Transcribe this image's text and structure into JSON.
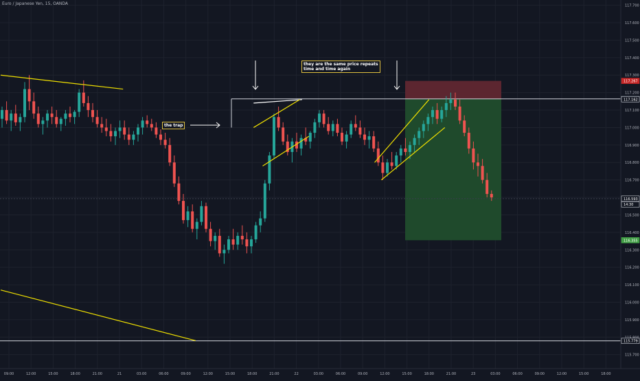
{
  "header": {
    "symbol": "Euro / Japanese Yen, 15, OANDA"
  },
  "colors": {
    "background": "#131722",
    "grid": "#1e222d",
    "up": "#26a69a",
    "down": "#ef5350",
    "trendline": "#f0e000",
    "level": "#d1d4dc",
    "stop_zone": "#5c2630",
    "target_zone": "#1f4a2c",
    "axis_text": "#b2b5be"
  },
  "annotations": {
    "trap": "the trap",
    "note_line1": "they are the same price repeats",
    "note_line2": "time and time again"
  },
  "chart_data": {
    "type": "candlestick",
    "title": "Euro / Japanese Yen, 15, OANDA",
    "ylim": [
      115.62,
      117.73
    ],
    "y_ticks": [
      115.7,
      115.8,
      115.9,
      116.0,
      116.1,
      116.2,
      116.3,
      116.4,
      116.5,
      116.6,
      116.7,
      116.8,
      116.9,
      117.0,
      117.1,
      117.2,
      117.3,
      117.4,
      117.5,
      117.6,
      117.7
    ],
    "y_tick_labels": [
      "115.700",
      "115.800",
      "115.900",
      "116.000",
      "116.100",
      "116.200",
      "116.300",
      "116.400",
      "116.500",
      "116.600",
      "116.700",
      "116.800",
      "116.900",
      "117.000",
      "117.100",
      "117.200",
      "117.300",
      "117.400",
      "117.500",
      "117.600",
      "117.700"
    ],
    "x_tick_labels": [
      "09:00",
      "12:00",
      "15:00",
      "18:00",
      "21:00",
      "21",
      "03:00",
      "06:00",
      "09:00",
      "12:00",
      "15:00",
      "18:00",
      "21:00",
      "22",
      "03:00",
      "06:00",
      "09:00",
      "12:00",
      "15:00",
      "18:00",
      "21:00",
      "23",
      "03:00",
      "06:00",
      "09:00",
      "12:00",
      "15:00",
      "18:00"
    ],
    "price_labels": [
      {
        "value": 117.267,
        "text": "117.267",
        "color": "#c62828"
      },
      {
        "value": 117.164,
        "text": "117.164",
        "color": "#555a66"
      },
      {
        "value": 117.162,
        "text": "117.162",
        "color": "#131722"
      },
      {
        "value": 116.593,
        "text": "116.593",
        "color": "#131722"
      },
      {
        "value": 116.56,
        "text": "14:30",
        "color": "#131722"
      },
      {
        "value": 116.355,
        "text": "116.355",
        "color": "#43a047"
      },
      {
        "value": 115.779,
        "text": "115.779",
        "color": "#131722"
      }
    ],
    "levels": [
      117.164,
      115.779
    ],
    "last_price": 116.593,
    "position": {
      "entry": 117.164,
      "stop": 117.267,
      "target": 116.355
    },
    "candles": [
      [
        117.05,
        117.12,
        117.0,
        117.1
      ],
      [
        117.1,
        117.15,
        117.02,
        117.04
      ],
      [
        117.04,
        117.1,
        116.98,
        117.08
      ],
      [
        117.08,
        117.13,
        117.01,
        117.03
      ],
      [
        117.03,
        117.08,
        116.98,
        117.06
      ],
      [
        117.06,
        117.26,
        117.03,
        117.22
      ],
      [
        117.22,
        117.3,
        117.1,
        117.15
      ],
      [
        117.15,
        117.2,
        117.05,
        117.08
      ],
      [
        117.08,
        117.12,
        117.0,
        117.02
      ],
      [
        117.02,
        117.06,
        116.96,
        117.04
      ],
      [
        117.04,
        117.1,
        117.0,
        117.08
      ],
      [
        117.08,
        117.12,
        117.02,
        117.06
      ],
      [
        117.06,
        117.1,
        117.0,
        117.02
      ],
      [
        117.02,
        117.06,
        116.98,
        117.05
      ],
      [
        117.05,
        117.1,
        117.01,
        117.08
      ],
      [
        117.08,
        117.12,
        117.03,
        117.06
      ],
      [
        117.06,
        117.1,
        117.02,
        117.09
      ],
      [
        117.09,
        117.22,
        117.06,
        117.2
      ],
      [
        117.2,
        117.27,
        117.12,
        117.14
      ],
      [
        117.14,
        117.18,
        117.06,
        117.1
      ],
      [
        117.1,
        117.14,
        117.03,
        117.06
      ],
      [
        117.06,
        117.1,
        117.0,
        117.02
      ],
      [
        117.02,
        117.06,
        116.97,
        117.0
      ],
      [
        117.0,
        117.05,
        116.95,
        116.98
      ],
      [
        116.98,
        117.02,
        116.92,
        116.95
      ],
      [
        116.95,
        117.0,
        116.9,
        116.98
      ],
      [
        116.98,
        117.04,
        116.94,
        117.0
      ],
      [
        117.0,
        117.04,
        116.93,
        116.96
      ],
      [
        116.96,
        117.0,
        116.9,
        116.93
      ],
      [
        116.93,
        116.98,
        116.9,
        116.96
      ],
      [
        116.96,
        117.02,
        116.92,
        117.0
      ],
      [
        117.0,
        117.06,
        116.96,
        117.04
      ],
      [
        117.04,
        117.07,
        117.0,
        117.02
      ],
      [
        117.02,
        117.05,
        116.98,
        117.0
      ],
      [
        117.0,
        117.03,
        116.94,
        116.96
      ],
      [
        116.96,
        116.99,
        116.9,
        116.93
      ],
      [
        116.93,
        116.97,
        116.88,
        116.9
      ],
      [
        116.9,
        116.94,
        116.78,
        116.8
      ],
      [
        116.8,
        116.84,
        116.66,
        116.68
      ],
      [
        116.68,
        116.72,
        116.56,
        116.58
      ],
      [
        116.58,
        116.62,
        116.45,
        116.47
      ],
      [
        116.47,
        116.55,
        116.43,
        116.52
      ],
      [
        116.52,
        116.56,
        116.4,
        116.42
      ],
      [
        116.42,
        116.48,
        116.36,
        116.46
      ],
      [
        116.46,
        116.58,
        116.44,
        116.55
      ],
      [
        116.55,
        116.57,
        116.4,
        116.42
      ],
      [
        116.42,
        116.46,
        116.32,
        116.35
      ],
      [
        116.35,
        116.4,
        116.3,
        116.38
      ],
      [
        116.38,
        116.42,
        116.26,
        116.28
      ],
      [
        116.28,
        116.33,
        116.22,
        116.3
      ],
      [
        116.3,
        116.38,
        116.28,
        116.36
      ],
      [
        116.36,
        116.42,
        116.3,
        116.33
      ],
      [
        116.33,
        116.4,
        116.3,
        116.38
      ],
      [
        116.38,
        116.44,
        116.33,
        116.36
      ],
      [
        116.36,
        116.4,
        116.28,
        116.32
      ],
      [
        116.32,
        116.38,
        116.28,
        116.36
      ],
      [
        116.36,
        116.46,
        116.34,
        116.44
      ],
      [
        116.44,
        116.52,
        116.4,
        116.48
      ],
      [
        116.48,
        116.7,
        116.46,
        116.68
      ],
      [
        116.68,
        116.86,
        116.64,
        116.84
      ],
      [
        116.84,
        117.08,
        116.82,
        117.06
      ],
      [
        117.06,
        117.12,
        116.98,
        117.0
      ],
      [
        117.0,
        117.03,
        116.9,
        116.92
      ],
      [
        116.92,
        116.96,
        116.84,
        116.86
      ],
      [
        116.86,
        116.94,
        116.8,
        116.92
      ],
      [
        116.92,
        116.97,
        116.86,
        116.88
      ],
      [
        116.88,
        116.96,
        116.84,
        116.94
      ],
      [
        116.94,
        117.0,
        116.9,
        116.92
      ],
      [
        116.92,
        116.98,
        116.88,
        116.97
      ],
      [
        116.97,
        117.05,
        116.94,
        117.03
      ],
      [
        117.03,
        117.1,
        117.0,
        117.08
      ],
      [
        117.08,
        117.1,
        117.0,
        117.02
      ],
      [
        117.02,
        117.06,
        116.96,
        116.98
      ],
      [
        116.98,
        117.04,
        116.95,
        117.02
      ],
      [
        117.02,
        117.05,
        116.95,
        116.97
      ],
      [
        116.97,
        117.0,
        116.9,
        116.92
      ],
      [
        116.92,
        116.98,
        116.88,
        116.96
      ],
      [
        116.96,
        117.04,
        116.94,
        117.02
      ],
      [
        117.02,
        117.07,
        116.98,
        117.0
      ],
      [
        117.0,
        117.04,
        116.94,
        116.96
      ],
      [
        116.96,
        117.0,
        116.9,
        116.93
      ],
      [
        116.93,
        116.98,
        116.88,
        116.95
      ],
      [
        116.95,
        116.98,
        116.86,
        116.88
      ],
      [
        116.88,
        116.92,
        116.78,
        116.8
      ],
      [
        116.8,
        116.84,
        116.7,
        116.74
      ],
      [
        116.74,
        116.82,
        116.72,
        116.8
      ],
      [
        116.8,
        116.86,
        116.76,
        116.78
      ],
      [
        116.78,
        116.86,
        116.76,
        116.84
      ],
      [
        116.84,
        116.9,
        116.8,
        116.88
      ],
      [
        116.88,
        116.94,
        116.84,
        116.86
      ],
      [
        116.86,
        116.92,
        116.82,
        116.9
      ],
      [
        116.9,
        116.96,
        116.86,
        116.94
      ],
      [
        116.94,
        117.0,
        116.9,
        116.98
      ],
      [
        116.98,
        117.04,
        116.94,
        117.02
      ],
      [
        117.02,
        117.08,
        116.98,
        117.06
      ],
      [
        117.06,
        117.12,
        117.02,
        117.1
      ],
      [
        117.1,
        117.14,
        117.02,
        117.05
      ],
      [
        117.05,
        117.12,
        117.03,
        117.1
      ],
      [
        117.1,
        117.18,
        117.06,
        117.14
      ],
      [
        117.14,
        117.2,
        117.1,
        117.16
      ],
      [
        117.16,
        117.2,
        117.1,
        117.12
      ],
      [
        117.12,
        117.16,
        117.02,
        117.04
      ],
      [
        117.04,
        117.07,
        116.95,
        116.97
      ],
      [
        116.97,
        117.0,
        116.85,
        116.88
      ],
      [
        116.88,
        116.92,
        116.76,
        116.8
      ],
      [
        116.8,
        116.85,
        116.72,
        116.78
      ],
      [
        116.78,
        116.82,
        116.68,
        116.7
      ],
      [
        116.7,
        116.74,
        116.6,
        116.62
      ],
      [
        116.62,
        116.64,
        116.58,
        116.6
      ]
    ],
    "trendlines": [
      {
        "from": [
          0,
          117.3
        ],
        "to": [
          27,
          117.22
        ]
      },
      {
        "from": [
          0,
          116.07
        ],
        "to": [
          43,
          115.78
        ]
      }
    ],
    "channels": [
      {
        "from": [
          55.8,
          117.14
        ],
        "to": [
          66.5,
          117.16
        ]
      },
      {
        "from": [
          55.8,
          117.0
        ],
        "to": [
          66,
          117.16
        ]
      },
      {
        "from": [
          57.8,
          116.78
        ],
        "to": [
          68,
          116.95
        ]
      },
      {
        "from": [
          82.5,
          116.8
        ],
        "to": [
          94.5,
          117.16
        ]
      },
      {
        "from": [
          84,
          116.7
        ],
        "to": [
          98,
          117.0
        ]
      }
    ]
  }
}
